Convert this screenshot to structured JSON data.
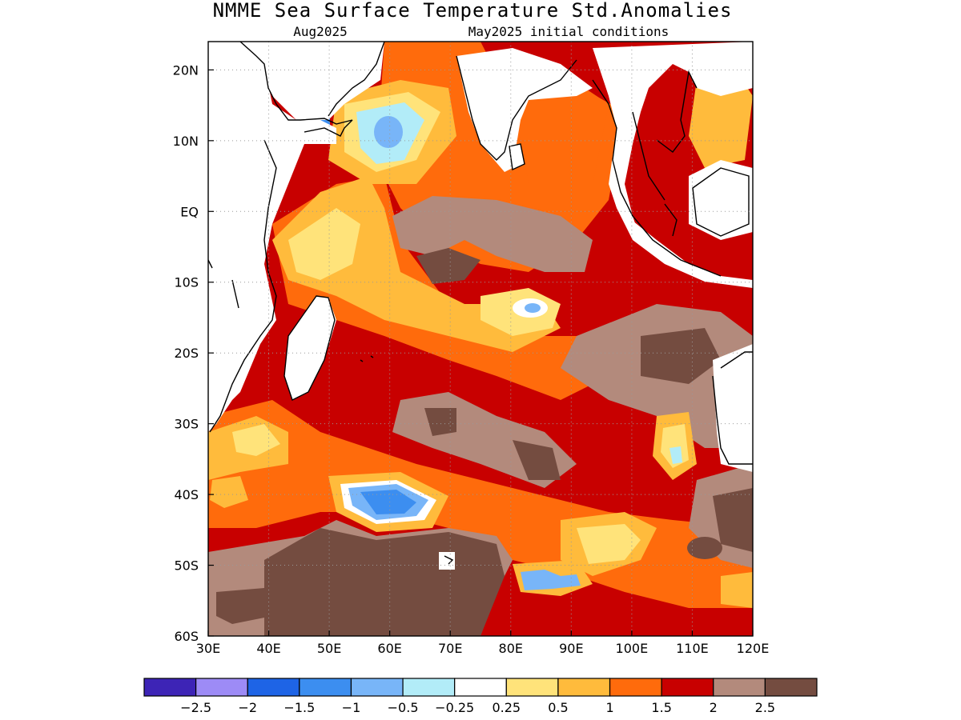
{
  "title": "NMME Sea Surface Temperature Std.Anomalies",
  "subtitle_left": "Aug2025",
  "subtitle_right": "May2025 initial conditions",
  "map": {
    "lon_range": [
      30,
      120
    ],
    "lat_range": [
      -60,
      24
    ],
    "lon_ticks": [
      {
        "value": 30,
        "label": "30E"
      },
      {
        "value": 40,
        "label": "40E"
      },
      {
        "value": 50,
        "label": "50E"
      },
      {
        "value": 60,
        "label": "60E"
      },
      {
        "value": 70,
        "label": "70E"
      },
      {
        "value": 80,
        "label": "80E"
      },
      {
        "value": 90,
        "label": "90E"
      },
      {
        "value": 100,
        "label": "100E"
      },
      {
        "value": 110,
        "label": "110E"
      },
      {
        "value": 120,
        "label": "120E"
      }
    ],
    "lat_ticks": [
      {
        "value": 20,
        "label": "20N"
      },
      {
        "value": 10,
        "label": "10N"
      },
      {
        "value": 0,
        "label": "EQ"
      },
      {
        "value": -10,
        "label": "10S"
      },
      {
        "value": -20,
        "label": "20S"
      },
      {
        "value": -30,
        "label": "30S"
      },
      {
        "value": -40,
        "label": "40S"
      },
      {
        "value": -50,
        "label": "50S"
      },
      {
        "value": -60,
        "label": "60S"
      }
    ],
    "gridlines": true
  },
  "colorbar": {
    "colors": [
      "#3d24b6",
      "#9d8bf6",
      "#1e64e6",
      "#3c8ef0",
      "#78b5f8",
      "#b2ecf8",
      "#ffffff",
      "#ffe37a",
      "#ffbb3c",
      "#ff6b0c",
      "#c80000",
      "#b38a7c",
      "#744c40"
    ],
    "labels": [
      "-2.5",
      "-2",
      "-1.5",
      "-1",
      "-0.5",
      "-0.25",
      "0.25",
      "0.5",
      "1",
      "1.5",
      "2",
      "2.5"
    ]
  }
}
